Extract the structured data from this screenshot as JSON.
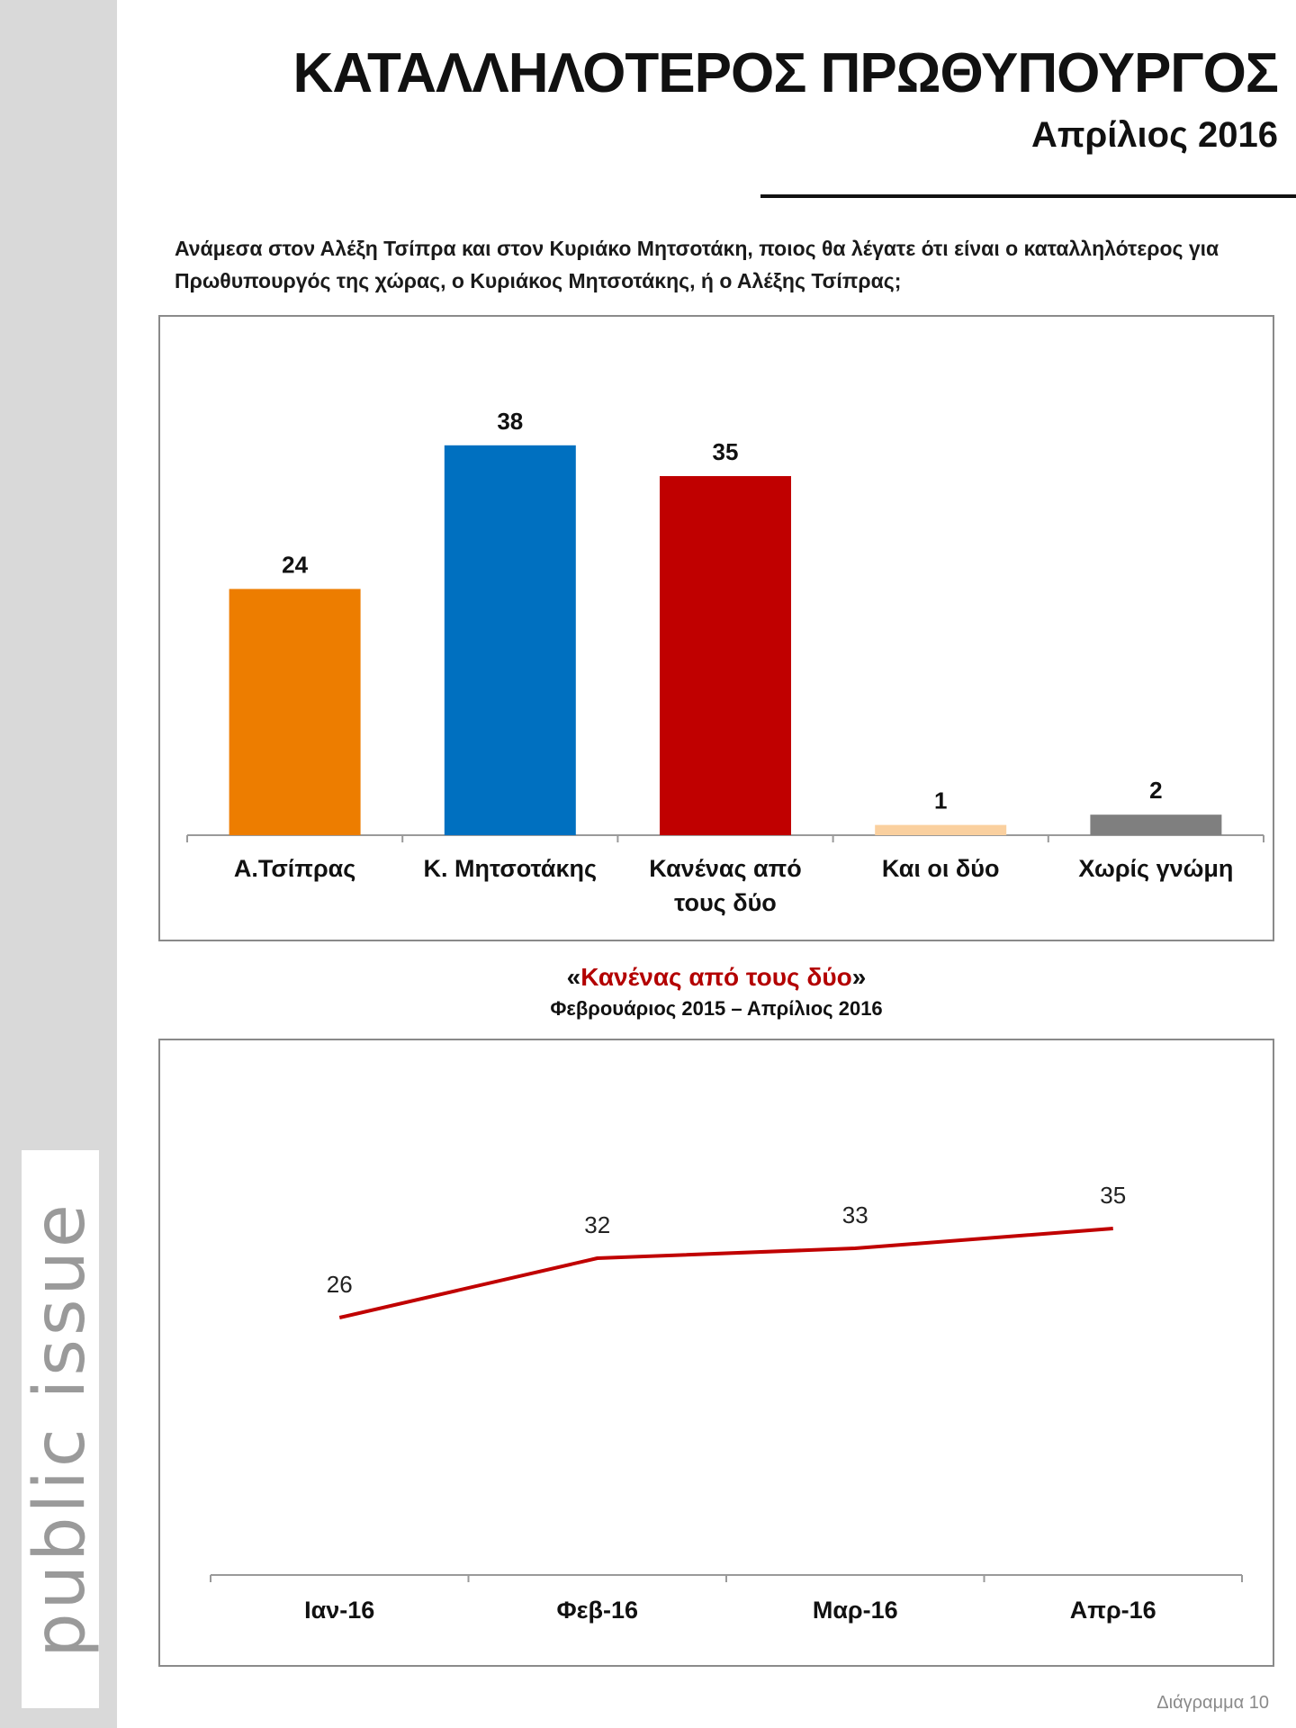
{
  "header": {
    "title": "ΚΑΤΑΛΛΗΛΟΤΕΡΟΣ ΠΡΩΘΥΠΟΥΡΓΟΣ",
    "subtitle": "Απρίλιος 2016"
  },
  "question": "Ανάμεσα στον Αλέξη Τσίπρα και στον Κυριάκο Μητσοτάκη, ποιος θα λέγατε ότι είναι ο καταλληλότερος για Πρωθυπουργός της χώρας, ο Κυριάκος Μητσοτάκης, ή ο Αλέξης Τσίπρας;",
  "line_section": {
    "quote_open": "«",
    "title": "Κανένας από τους δύο",
    "quote_close": "»",
    "subtitle": "Φεβρουάριος 2015 – Απρίλιος 2016"
  },
  "logo": "public issue",
  "footer": "Διάγραμμα 10",
  "chart_data": [
    {
      "type": "bar",
      "categories": [
        [
          "Α.Τσίπρας"
        ],
        [
          "Κ. Μητσοτάκης"
        ],
        [
          "Κανένας από",
          "τους δύο"
        ],
        [
          "Και οι δύο"
        ],
        [
          "Χωρίς γνώμη"
        ]
      ],
      "values": [
        24,
        38,
        35,
        1,
        2
      ],
      "colors": [
        "#ED7D00",
        "#0070C0",
        "#C00000",
        "#FAD09F",
        "#7F7F7F"
      ],
      "ylim": [
        0,
        40
      ],
      "data_labels": true,
      "grid": false
    },
    {
      "type": "line",
      "categories": [
        "Ιαν-16",
        "Φεβ-16",
        "Μαρ-16",
        "Απρ-16"
      ],
      "values": [
        26,
        32,
        33,
        35
      ],
      "color": "#C00000",
      "ylim": [
        0,
        42
      ],
      "data_labels": true,
      "grid": false
    }
  ]
}
